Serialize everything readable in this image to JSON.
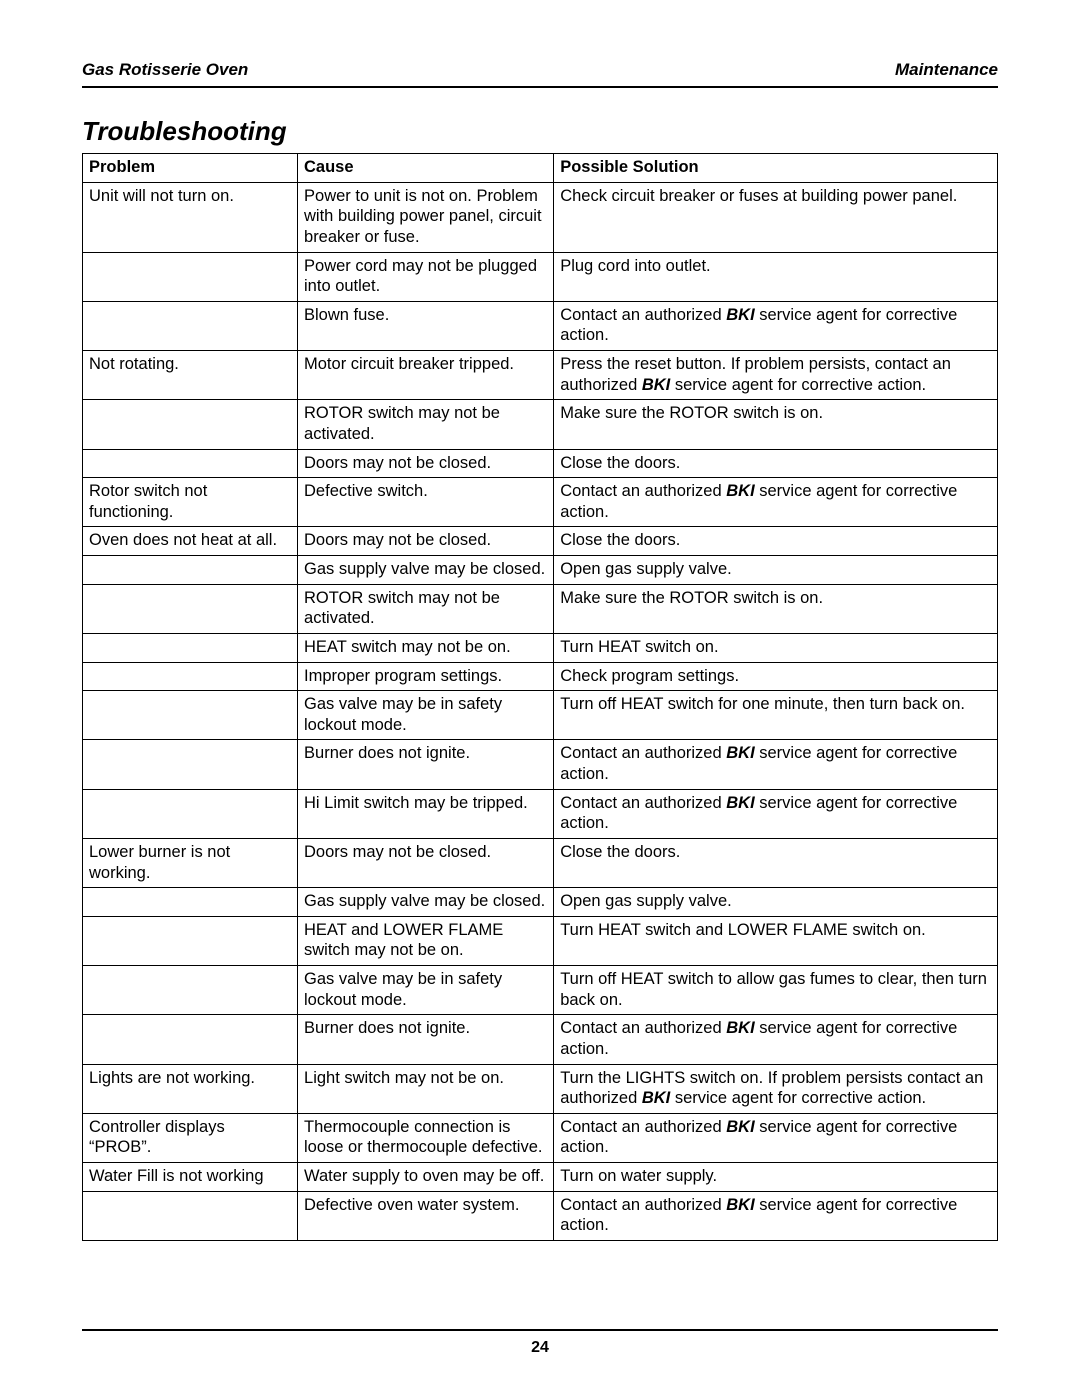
{
  "header": {
    "left": "Gas Rotisserie Oven",
    "right": "Maintenance"
  },
  "section_title": "Troubleshooting",
  "page_number": "24",
  "columns": {
    "problem": "Problem",
    "cause": "Cause",
    "solution": "Possible Solution"
  },
  "brand_token": "BKI",
  "rows": [
    {
      "problem": "Unit will not turn on.",
      "cause": "Power to unit is not on. Problem with building power panel, circuit breaker or fuse.",
      "solution": "Check circuit breaker or fuses at building power panel."
    },
    {
      "problem": "",
      "cause": "Power cord may not be plugged into outlet.",
      "solution": "Plug cord into outlet."
    },
    {
      "problem": "",
      "cause": "Blown fuse.",
      "solution": "Contact an authorized {{BKI}} service agent for corrective action."
    },
    {
      "problem": "Not rotating.",
      "cause": "Motor circuit breaker tripped.",
      "solution": "Press the reset button. If problem persists, contact an authorized {{BKI}} service agent for corrective action."
    },
    {
      "problem": "",
      "cause": "ROTOR switch may not be activated.",
      "solution": "Make sure the ROTOR switch is on."
    },
    {
      "problem": "",
      "cause": "Doors may not be closed.",
      "solution": "Close the doors."
    },
    {
      "problem": "Rotor switch not functioning.",
      "cause": "Defective switch.",
      "solution": "Contact an authorized {{BKI}} service agent for corrective action."
    },
    {
      "problem": "Oven does not heat at all.",
      "cause": "Doors may not be closed.",
      "solution": "Close the doors."
    },
    {
      "problem": "",
      "cause": "Gas supply valve may be closed.",
      "solution": "Open gas supply valve."
    },
    {
      "problem": "",
      "cause": "ROTOR switch may not be activated.",
      "solution": "Make sure the ROTOR switch is on."
    },
    {
      "problem": "",
      "cause": "HEAT switch may not be on.",
      "solution": "Turn HEAT switch on."
    },
    {
      "problem": "",
      "cause": "Improper program settings.",
      "solution": "Check program settings."
    },
    {
      "problem": "",
      "cause": "Gas valve may be in safety lockout mode.",
      "solution": "Turn off HEAT switch for one minute, then turn back on."
    },
    {
      "problem": "",
      "cause": "Burner does not ignite.",
      "solution": "Contact an authorized {{BKI}} service agent for corrective action."
    },
    {
      "problem": "",
      "cause": "Hi Limit switch may be tripped.",
      "solution": "Contact an authorized {{BKI}} service agent for corrective action."
    },
    {
      "problem": "Lower burner is not working.",
      "cause": "Doors may not be closed.",
      "solution": "Close the doors."
    },
    {
      "problem": "",
      "cause": "Gas supply valve may be closed.",
      "solution": "Open gas supply valve."
    },
    {
      "problem": "",
      "cause": "HEAT and LOWER FLAME switch may not be on.",
      "solution": "Turn HEAT switch and LOWER FLAME switch on."
    },
    {
      "problem": "",
      "cause": "Gas valve may be in safety lockout mode.",
      "solution": "Turn off HEAT switch to allow gas fumes to clear, then turn back on."
    },
    {
      "problem": "",
      "cause": "Burner does not ignite.",
      "solution": "Contact an authorized {{BKI}} service agent for corrective action."
    },
    {
      "problem": "Lights are not working.",
      "cause": "Light switch may not be on.",
      "solution": "Turn the LIGHTS switch on. If problem persists contact an authorized {{BKI}} service agent for corrective action."
    },
    {
      "problem": "Controller displays “PROB”.",
      "cause": "Thermocouple connection is loose or thermocouple defective.",
      "solution": "Contact an authorized {{BKI}} service agent for corrective action."
    },
    {
      "problem": "Water Fill is not working",
      "cause": "Water supply to oven may be off.",
      "solution": "Turn on water supply."
    },
    {
      "problem": "",
      "cause": "Defective oven water system.",
      "solution": "Contact an authorized {{BKI}} service agent for corrective action."
    }
  ]
}
